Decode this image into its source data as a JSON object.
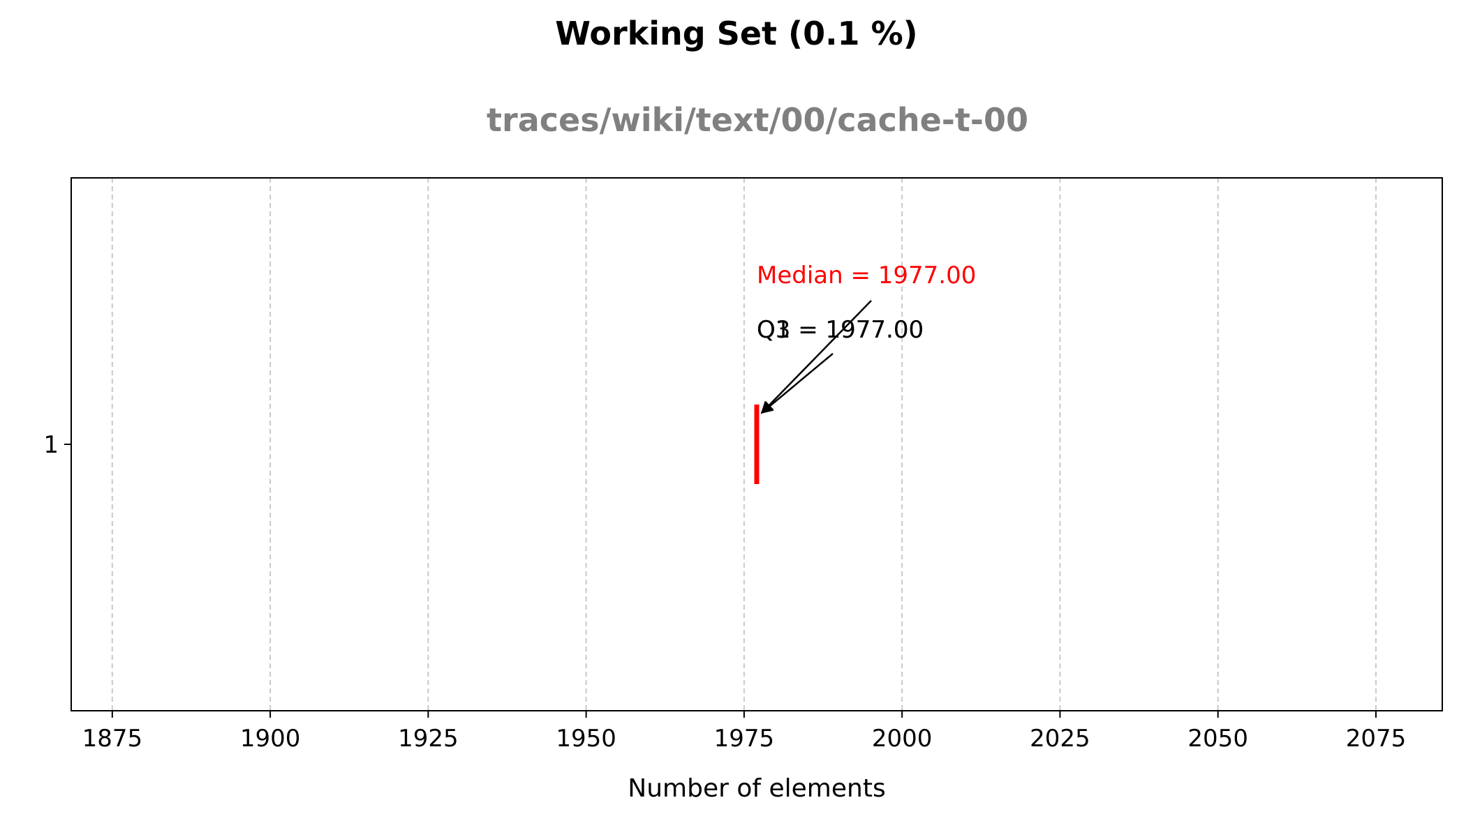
{
  "chart_data": {
    "type": "boxplot",
    "title": "Working Set (0.1 %)",
    "subtitle": "traces/wiki/text/00/cache-t-00",
    "xlabel": "Number of elements",
    "ylabel": "",
    "xlim": [
      1868.5,
      2085.5
    ],
    "xticks": [
      1875,
      1900,
      1925,
      1950,
      1975,
      2000,
      2025,
      2050,
      2075
    ],
    "yticks": [
      1
    ],
    "grid": "x, dashed",
    "boxes": [
      {
        "position": 1,
        "q1": 1977.0,
        "median": 1977.0,
        "q3": 1977.0
      }
    ],
    "annotations": [
      {
        "id": "median",
        "text": "Median = 1977.00",
        "value": 1977.0,
        "color": "#ff0000"
      },
      {
        "id": "q1",
        "text": "Q1 = 1977.00",
        "value": 1977.0,
        "color": "#000000"
      },
      {
        "id": "q3",
        "text": "Q3 = 1977.00",
        "value": 1977.0,
        "color": "#000000"
      }
    ],
    "colors": {
      "median": "#ff0000",
      "grid": "#c8c8c8",
      "axis": "#000000",
      "subtitle": "#808080"
    }
  }
}
